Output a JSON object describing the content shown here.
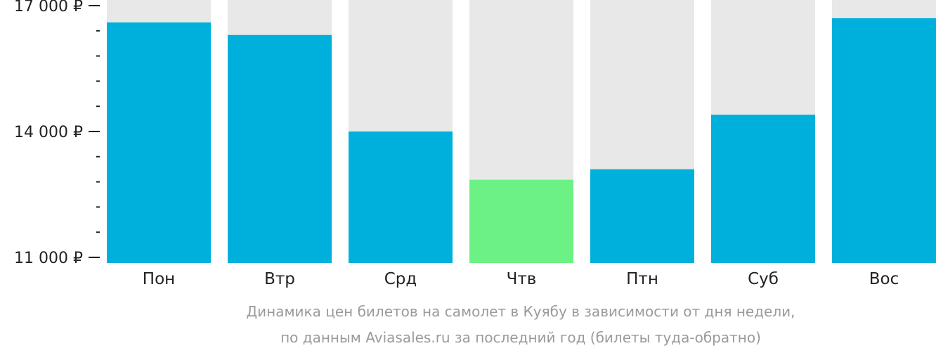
{
  "chart_data": {
    "type": "bar",
    "categories": [
      "Пон",
      "Втр",
      "Срд",
      "Чтв",
      "Птн",
      "Суб",
      "Вос"
    ],
    "values": [
      16600,
      16300,
      14000,
      12850,
      13100,
      14400,
      16700
    ],
    "highlight_index": 3,
    "ylim": [
      11000,
      17000
    ],
    "y_ticks": [
      11000,
      14000,
      17000
    ],
    "y_tick_labels": [
      "11 000 ₽",
      "14 000 ₽",
      "17 000 ₽"
    ],
    "minor_ticks_between": 4,
    "colors": {
      "bar": "#00b0dc",
      "highlight": "#6cf184",
      "background": "#e8e8e8",
      "axis": "#222222"
    },
    "caption": [
      "Динамика цен билетов на самолет в Куябу в зависимости от дня недели,",
      "по данным Aviasales.ru за последний год (билеты туда-обратно)"
    ]
  }
}
